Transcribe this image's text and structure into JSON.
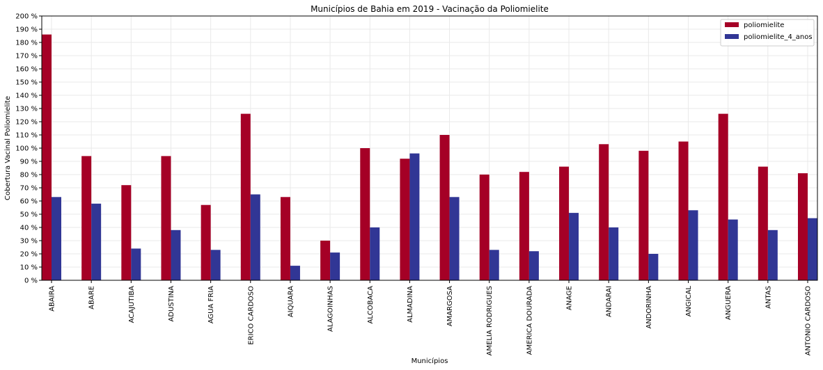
{
  "chart_data": {
    "type": "bar",
    "title": "Municípios de Bahia em 2019 - Vacinação da Poliomielite",
    "xlabel": "Municípios",
    "ylabel": "Cobertura Vacinal Poliomielite",
    "ylim": [
      0,
      200
    ],
    "ytick_step": 10,
    "ytick_suffix": " %",
    "grid": true,
    "legend_position": "top-right",
    "categories": [
      "ABAIRA",
      "ABARE",
      "ACAJUTIBA",
      "ADUSTINA",
      "AGUA FRIA",
      "ERICO CARDOSO",
      "AIQUARA",
      "ALAGOINHAS",
      "ALCOBACA",
      "ALMADINA",
      "AMARGOSA",
      "AMELIA RODRIGUES",
      "AMERICA DOURADA",
      "ANAGE",
      "ANDARAI",
      "ANDORINHA",
      "ANGICAL",
      "ANGUERA",
      "ANTAS",
      "ANTONIO CARDOSO"
    ],
    "series": [
      {
        "name": "poliomielite",
        "color": "#a50026",
        "values": [
          186,
          94,
          72,
          94,
          57,
          126,
          63,
          30,
          100,
          92,
          110,
          80,
          82,
          86,
          103,
          98,
          105,
          126,
          86,
          81
        ]
      },
      {
        "name": "poliomielite_4_anos",
        "color": "#313695",
        "values": [
          63,
          58,
          24,
          38,
          23,
          65,
          11,
          21,
          40,
          96,
          63,
          23,
          22,
          51,
          40,
          20,
          53,
          46,
          38,
          47
        ]
      }
    ]
  }
}
